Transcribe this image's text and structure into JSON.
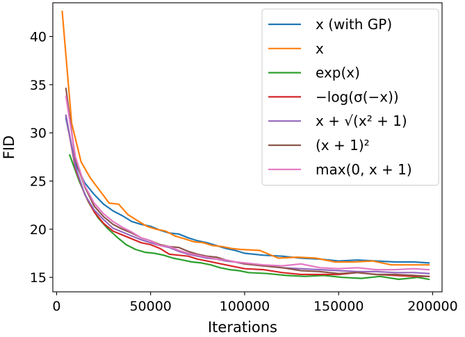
{
  "chart_data": {
    "type": "line",
    "title": "",
    "xlabel": "Iterations",
    "ylabel": "FID",
    "xlim": [
      -2000,
      205000
    ],
    "ylim": [
      13.5,
      43.5
    ],
    "xticks": [
      0,
      50000,
      100000,
      150000,
      200000
    ],
    "xtick_labels": [
      "0",
      "50000",
      "100000",
      "150000",
      "200000"
    ],
    "yticks": [
      15,
      20,
      25,
      30,
      35,
      40
    ],
    "ytick_labels": [
      "15",
      "20",
      "25",
      "30",
      "35",
      "40"
    ],
    "grid": false,
    "legend_position": "top-right",
    "series": [
      {
        "name": "x (with GP)",
        "color": "#1f77b4",
        "x": [
          5000,
          10000,
          15000,
          20000,
          25000,
          30000,
          35000,
          40000,
          45000,
          50000,
          55000,
          60000,
          65000,
          70000,
          75000,
          80000,
          85000,
          90000,
          95000,
          100000,
          110000,
          120000,
          130000,
          140000,
          150000,
          160000,
          170000,
          180000,
          190000,
          198000
        ],
        "y": [
          31.5,
          26.8,
          24.8,
          23.6,
          22.6,
          21.9,
          21.4,
          20.8,
          20.5,
          20.3,
          19.9,
          19.6,
          19.5,
          19.1,
          18.8,
          18.6,
          18.3,
          18.0,
          17.8,
          17.5,
          17.3,
          17.2,
          17.0,
          16.9,
          16.7,
          16.8,
          16.7,
          16.6,
          16.6,
          16.5
        ]
      },
      {
        "name": "x",
        "color": "#ff7f0e",
        "x": [
          3000,
          8000,
          13000,
          18000,
          23000,
          28000,
          33000,
          38000,
          43000,
          48000,
          53000,
          58000,
          63000,
          68000,
          73000,
          78000,
          83000,
          88000,
          93000,
          98000,
          108000,
          118000,
          128000,
          138000,
          148000,
          158000,
          168000,
          178000,
          188000,
          198000
        ],
        "y": [
          42.6,
          31.0,
          27.0,
          25.3,
          24.0,
          22.7,
          22.6,
          21.5,
          20.9,
          20.3,
          20.0,
          19.8,
          19.3,
          19.0,
          18.7,
          18.6,
          18.3,
          18.2,
          18.0,
          17.9,
          17.8,
          17.0,
          17.1,
          17.0,
          16.6,
          16.6,
          16.7,
          16.3,
          16.3,
          16.3
        ]
      },
      {
        "name": "exp(x)",
        "color": "#2ca02c",
        "x": [
          7000,
          12000,
          17000,
          22000,
          27000,
          32000,
          37000,
          42000,
          47000,
          52000,
          57000,
          62000,
          67000,
          72000,
          77000,
          82000,
          87000,
          92000,
          97000,
          102000,
          112000,
          122000,
          132000,
          142000,
          152000,
          162000,
          172000,
          182000,
          192000,
          198000
        ],
        "y": [
          27.7,
          25.0,
          22.8,
          21.2,
          20.1,
          19.2,
          18.4,
          17.9,
          17.6,
          17.5,
          17.3,
          17.0,
          16.8,
          16.6,
          16.5,
          16.3,
          16.0,
          15.8,
          15.7,
          15.5,
          15.4,
          15.2,
          15.1,
          15.2,
          15.0,
          14.9,
          15.1,
          14.8,
          15.0,
          14.8
        ]
      },
      {
        "name": "−log(σ(−x))",
        "color": "#d62728",
        "x": [
          5000,
          10000,
          15000,
          20000,
          25000,
          30000,
          35000,
          40000,
          45000,
          50000,
          55000,
          60000,
          65000,
          70000,
          75000,
          80000,
          85000,
          90000,
          95000,
          100000,
          110000,
          120000,
          130000,
          140000,
          150000,
          160000,
          170000,
          180000,
          190000,
          198000
        ],
        "y": [
          31.8,
          26.3,
          23.6,
          21.8,
          20.6,
          19.8,
          19.4,
          19.0,
          18.6,
          18.4,
          18.0,
          17.4,
          17.3,
          17.2,
          16.9,
          16.7,
          16.5,
          16.3,
          16.1,
          15.9,
          15.8,
          15.5,
          15.3,
          15.3,
          15.3,
          15.5,
          15.3,
          15.2,
          15.1,
          15.1
        ]
      },
      {
        "name": "x + √(x² + 1)",
        "color": "#9467bd",
        "x": [
          5000,
          10000,
          15000,
          20000,
          25000,
          30000,
          35000,
          40000,
          45000,
          50000,
          55000,
          60000,
          65000,
          70000,
          75000,
          80000,
          85000,
          90000,
          95000,
          100000,
          110000,
          120000,
          130000,
          140000,
          150000,
          160000,
          170000,
          180000,
          190000,
          198000
        ],
        "y": [
          31.8,
          26.5,
          23.6,
          22.0,
          21.0,
          20.1,
          19.7,
          19.3,
          18.9,
          18.6,
          18.3,
          18.1,
          17.7,
          17.4,
          17.2,
          17.0,
          16.9,
          16.7,
          16.6,
          16.4,
          16.2,
          16.0,
          15.9,
          15.8,
          15.7,
          15.6,
          15.6,
          15.5,
          15.5,
          15.4
        ]
      },
      {
        "name": "(x + 1)²",
        "color": "#8c564b",
        "x": [
          5000,
          10000,
          15000,
          20000,
          25000,
          30000,
          35000,
          40000,
          45000,
          50000,
          55000,
          60000,
          65000,
          70000,
          75000,
          80000,
          85000,
          90000,
          95000,
          100000,
          110000,
          120000,
          130000,
          140000,
          150000,
          160000,
          170000,
          180000,
          190000,
          198000
        ],
        "y": [
          34.6,
          27.2,
          24.4,
          22.4,
          21.3,
          20.5,
          20.0,
          19.6,
          19.1,
          18.8,
          18.4,
          18.2,
          18.1,
          17.7,
          17.4,
          17.2,
          17.1,
          16.8,
          16.6,
          16.4,
          16.2,
          16.0,
          15.7,
          15.6,
          15.4,
          15.5,
          15.3,
          15.3,
          15.2,
          15.1
        ]
      },
      {
        "name": "max(0, x + 1)",
        "color": "#e377c2",
        "x": [
          5000,
          10000,
          15000,
          20000,
          25000,
          30000,
          35000,
          40000,
          45000,
          50000,
          55000,
          60000,
          65000,
          70000,
          75000,
          80000,
          85000,
          90000,
          95000,
          100000,
          110000,
          120000,
          130000,
          140000,
          150000,
          160000,
          170000,
          180000,
          190000,
          198000
        ],
        "y": [
          33.8,
          27.5,
          24.5,
          22.7,
          21.6,
          20.8,
          20.2,
          19.7,
          19.1,
          18.8,
          18.3,
          18.2,
          17.8,
          17.5,
          17.3,
          17.1,
          16.9,
          16.8,
          16.6,
          16.5,
          16.3,
          16.2,
          16.4,
          16.0,
          15.9,
          16.0,
          15.8,
          15.8,
          15.9,
          15.8
        ]
      }
    ]
  }
}
